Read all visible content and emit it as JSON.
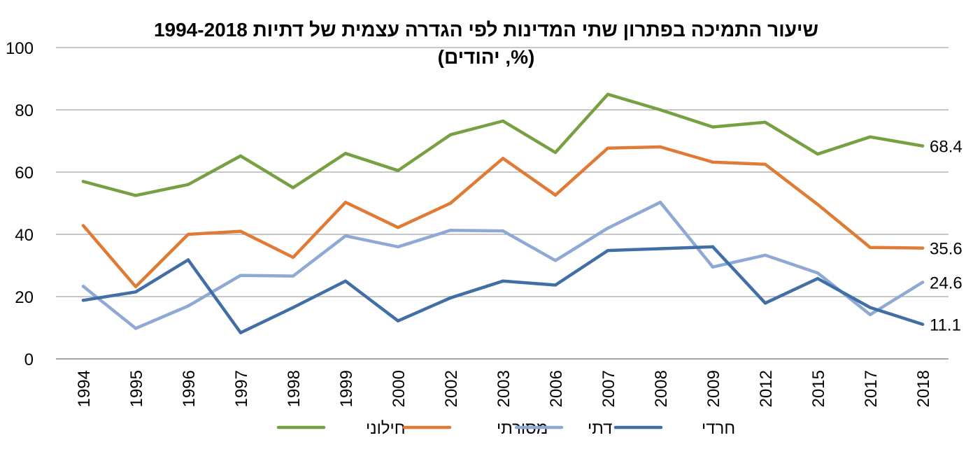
{
  "chart_data": {
    "type": "line",
    "title": "שיעור התמיכה בפתרון שתי המדינות לפי הגדרה עצמית של דתיות 1994-2018",
    "subtitle": "(%, יהודים)",
    "categories": [
      "1994",
      "1995",
      "1996",
      "1997",
      "1998",
      "1999",
      "2000",
      "2002",
      "2003",
      "2006",
      "2007",
      "2008",
      "2009",
      "2012",
      "2015",
      "2017",
      "2018"
    ],
    "ylim": [
      0,
      100
    ],
    "yticks": [
      "0",
      "20",
      "40",
      "60",
      "80",
      "100"
    ],
    "grid": true,
    "legend_position": "bottom",
    "series": [
      {
        "name": "חילוני",
        "color": "#77A043",
        "values": [
          57,
          52.5,
          56,
          65.2,
          55,
          66,
          60.5,
          72,
          76.4,
          66.3,
          85,
          80,
          74.5,
          76,
          65.8,
          71.3,
          68.4
        ],
        "end_label": "68.4"
      },
      {
        "name": "מסורתי",
        "color": "#E07B36",
        "values": [
          42.8,
          23.2,
          40,
          41,
          32.6,
          50.3,
          42.2,
          50,
          64.4,
          52.6,
          67.7,
          68.1,
          63.2,
          62.5,
          49.6,
          35.8,
          35.6
        ],
        "end_label": "35.6"
      },
      {
        "name": "דתי",
        "color": "#8EA9D3",
        "values": [
          23.3,
          9.8,
          17,
          26.8,
          26.6,
          39.5,
          36,
          41.3,
          41.1,
          31.6,
          42,
          50.3,
          29.5,
          33.3,
          27.6,
          14.2,
          24.6
        ],
        "end_label": "24.6"
      },
      {
        "name": "חרדי",
        "color": "#426EA6",
        "values": [
          18.8,
          21.5,
          31.8,
          8.4,
          16.5,
          25,
          12.2,
          19.6,
          25,
          23.7,
          34.8,
          35.4,
          36,
          17.9,
          25.8,
          16.5,
          11.1
        ],
        "end_label": "11.1"
      }
    ]
  }
}
